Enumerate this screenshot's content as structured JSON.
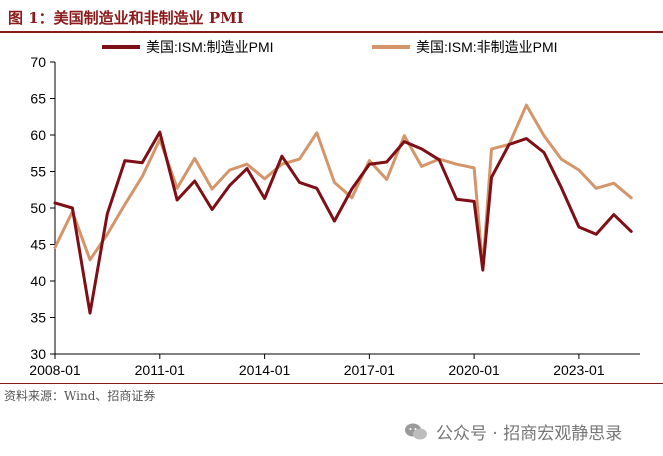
{
  "figure_title": "图 1：美国制造业和非制造业 PMI",
  "source_note": "资料来源：Wind、招商证券",
  "watermark": "公众号 · 招商宏观静思录",
  "colors": {
    "series1": "#7F0F16",
    "series2": "#D4956A",
    "accent": "#8B1A1A"
  },
  "chart_data": {
    "type": "line",
    "ylim": [
      30,
      70
    ],
    "yticks": [
      "30",
      "35",
      "40",
      "45",
      "50",
      "55",
      "60",
      "65",
      "70"
    ],
    "xticks": [
      "2008-01",
      "2011-01",
      "2014-01",
      "2017-01",
      "2020-01",
      "2023-01"
    ],
    "x": [
      "2008-01",
      "2008-07",
      "2009-01",
      "2009-07",
      "2010-01",
      "2010-07",
      "2011-01",
      "2011-07",
      "2012-01",
      "2012-07",
      "2013-01",
      "2013-07",
      "2014-01",
      "2014-07",
      "2015-01",
      "2015-07",
      "2016-01",
      "2016-07",
      "2017-01",
      "2017-07",
      "2018-01",
      "2018-07",
      "2019-01",
      "2019-07",
      "2020-01",
      "2020-04",
      "2020-07",
      "2021-01",
      "2021-07",
      "2022-01",
      "2022-07",
      "2023-01",
      "2023-07",
      "2024-01",
      "2024-07"
    ],
    "series": [
      {
        "name": "美国:ISM:制造业PMI",
        "values": [
          50.7,
          50.0,
          35.6,
          49.2,
          56.5,
          56.2,
          60.4,
          51.1,
          53.7,
          49.8,
          53.1,
          55.4,
          51.3,
          57.1,
          53.5,
          52.7,
          48.2,
          52.6,
          56.0,
          56.3,
          59.1,
          58.1,
          56.6,
          51.2,
          50.9,
          41.5,
          54.2,
          58.7,
          59.5,
          57.6,
          52.8,
          47.4,
          46.4,
          49.1,
          46.8
        ]
      },
      {
        "name": "美国:ISM:非制造业PMI",
        "values": [
          44.6,
          49.5,
          42.9,
          46.4,
          50.5,
          54.3,
          59.4,
          52.7,
          56.8,
          52.6,
          55.2,
          56.0,
          54.0,
          56.0,
          56.7,
          60.3,
          53.5,
          51.4,
          56.5,
          53.9,
          59.9,
          55.7,
          56.7,
          56.0,
          55.5,
          41.8,
          58.1,
          58.7,
          64.1,
          59.9,
          56.7,
          55.2,
          52.7,
          53.4,
          51.4
        ]
      }
    ]
  }
}
